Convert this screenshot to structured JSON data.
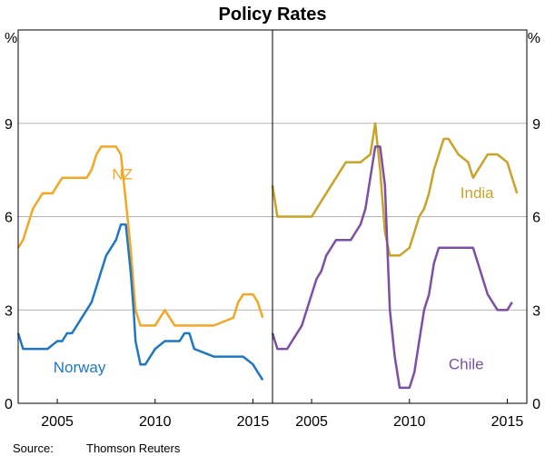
{
  "title": "Policy Rates",
  "source_label": "Source:",
  "source_text": "Thomson Reuters",
  "colors": {
    "nz": "#f5a623",
    "norway": "#1f77c4",
    "india": "#c9a227",
    "chile": "#7b4fa8",
    "grid": "#b3b3b3",
    "axis": "#000000"
  },
  "chart_data": [
    {
      "type": "line",
      "panel": "left",
      "title": "Policy Rates",
      "ylabel": "%",
      "ylim": [
        0,
        12
      ],
      "xlim": [
        2003.0,
        2016.0
      ],
      "yticks": [
        0,
        3,
        6,
        9
      ],
      "xticks": [
        2005,
        2010,
        2015
      ],
      "grid": true,
      "series": [
        {
          "name": "NZ",
          "color": "#f5a623",
          "x": [
            2003.0,
            2003.25,
            2003.5,
            2003.75,
            2004.0,
            2004.25,
            2004.5,
            2004.75,
            2005.0,
            2005.25,
            2005.5,
            2005.75,
            2006.0,
            2006.25,
            2006.5,
            2006.75,
            2007.0,
            2007.25,
            2007.5,
            2007.75,
            2008.0,
            2008.25,
            2008.5,
            2008.75,
            2009.0,
            2009.25,
            2009.5,
            2009.75,
            2010.0,
            2010.5,
            2011.0,
            2011.25,
            2011.5,
            2012.0,
            2013.0,
            2014.0,
            2014.25,
            2014.5,
            2015.0,
            2015.25,
            2015.5
          ],
          "values": [
            5.0,
            5.25,
            5.75,
            6.25,
            6.5,
            6.75,
            6.75,
            6.75,
            7.0,
            7.25,
            7.25,
            7.25,
            7.25,
            7.25,
            7.25,
            7.5,
            8.0,
            8.25,
            8.25,
            8.25,
            8.25,
            8.0,
            6.5,
            5.0,
            3.0,
            2.5,
            2.5,
            2.5,
            2.5,
            3.0,
            2.5,
            2.5,
            2.5,
            2.5,
            2.5,
            2.75,
            3.25,
            3.5,
            3.5,
            3.25,
            2.75
          ]
        },
        {
          "name": "Norway",
          "color": "#1f77c4",
          "x": [
            2003.0,
            2003.25,
            2003.5,
            2004.0,
            2004.5,
            2005.0,
            2005.25,
            2005.5,
            2005.75,
            2006.0,
            2006.25,
            2006.5,
            2006.75,
            2007.0,
            2007.25,
            2007.5,
            2007.75,
            2008.0,
            2008.25,
            2008.5,
            2008.75,
            2008.9,
            2009.0,
            2009.25,
            2009.5,
            2009.75,
            2010.0,
            2010.5,
            2011.0,
            2011.25,
            2011.5,
            2011.75,
            2012.0,
            2013.0,
            2014.0,
            2014.5,
            2015.0,
            2015.25,
            2015.5
          ],
          "values": [
            2.25,
            1.75,
            1.75,
            1.75,
            1.75,
            2.0,
            2.0,
            2.25,
            2.25,
            2.5,
            2.75,
            3.0,
            3.25,
            3.75,
            4.25,
            4.75,
            5.0,
            5.25,
            5.75,
            5.75,
            4.25,
            3.0,
            2.0,
            1.25,
            1.25,
            1.5,
            1.75,
            2.0,
            2.0,
            2.0,
            2.25,
            2.25,
            1.75,
            1.5,
            1.5,
            1.5,
            1.25,
            1.0,
            0.75
          ]
        }
      ],
      "annotations": [
        {
          "text": "NZ",
          "x": 2007.8,
          "y": 7.2
        },
        {
          "text": "Norway",
          "x": 2004.8,
          "y": 1.0
        }
      ]
    },
    {
      "type": "line",
      "panel": "right",
      "ylabel": "%",
      "ylim": [
        0,
        12
      ],
      "xlim": [
        2003.0,
        2016.0
      ],
      "yticks": [
        0,
        3,
        6,
        9
      ],
      "xticks": [
        2005,
        2010,
        2015
      ],
      "grid": true,
      "series": [
        {
          "name": "India",
          "color": "#c9a227",
          "x": [
            2003.0,
            2003.25,
            2003.5,
            2004.0,
            2004.5,
            2005.0,
            2005.25,
            2005.5,
            2005.75,
            2006.0,
            2006.25,
            2006.5,
            2006.75,
            2007.0,
            2007.5,
            2008.0,
            2008.25,
            2008.5,
            2008.75,
            2009.0,
            2009.5,
            2010.0,
            2010.25,
            2010.5,
            2010.75,
            2011.0,
            2011.25,
            2011.5,
            2011.75,
            2012.0,
            2012.5,
            2013.0,
            2013.25,
            2013.5,
            2013.75,
            2014.0,
            2014.5,
            2015.0,
            2015.25,
            2015.5
          ],
          "values": [
            7.0,
            6.0,
            6.0,
            6.0,
            6.0,
            6.0,
            6.25,
            6.5,
            6.75,
            7.0,
            7.25,
            7.5,
            7.75,
            7.75,
            7.75,
            8.0,
            9.0,
            7.5,
            5.5,
            4.75,
            4.75,
            5.0,
            5.5,
            6.0,
            6.25,
            6.75,
            7.5,
            8.0,
            8.5,
            8.5,
            8.0,
            7.75,
            7.25,
            7.5,
            7.75,
            8.0,
            8.0,
            7.75,
            7.25,
            6.75
          ]
        },
        {
          "name": "Chile",
          "color": "#7b4fa8",
          "x": [
            2003.0,
            2003.25,
            2003.75,
            2004.0,
            2004.5,
            2004.75,
            2005.0,
            2005.25,
            2005.5,
            2005.75,
            2006.0,
            2006.25,
            2006.5,
            2006.75,
            2007.0,
            2007.25,
            2007.5,
            2007.75,
            2008.0,
            2008.25,
            2008.5,
            2008.75,
            2009.0,
            2009.25,
            2009.5,
            2010.0,
            2010.25,
            2010.5,
            2010.75,
            2011.0,
            2011.25,
            2011.5,
            2012.0,
            2013.0,
            2013.25,
            2013.5,
            2013.75,
            2014.0,
            2014.25,
            2014.5,
            2015.0,
            2015.25
          ],
          "values": [
            2.25,
            1.75,
            1.75,
            2.0,
            2.5,
            3.0,
            3.5,
            4.0,
            4.25,
            4.75,
            5.0,
            5.25,
            5.25,
            5.25,
            5.25,
            5.5,
            5.75,
            6.25,
            7.25,
            8.25,
            8.25,
            7.0,
            3.0,
            1.5,
            0.5,
            0.5,
            1.0,
            2.0,
            3.0,
            3.5,
            4.5,
            5.0,
            5.0,
            5.0,
            5.0,
            4.5,
            4.0,
            3.5,
            3.25,
            3.0,
            3.0,
            3.25
          ]
        }
      ],
      "annotations": [
        {
          "text": "India",
          "x": 2012.6,
          "y": 6.6
        },
        {
          "text": "Chile",
          "x": 2012.0,
          "y": 1.1
        }
      ]
    }
  ]
}
